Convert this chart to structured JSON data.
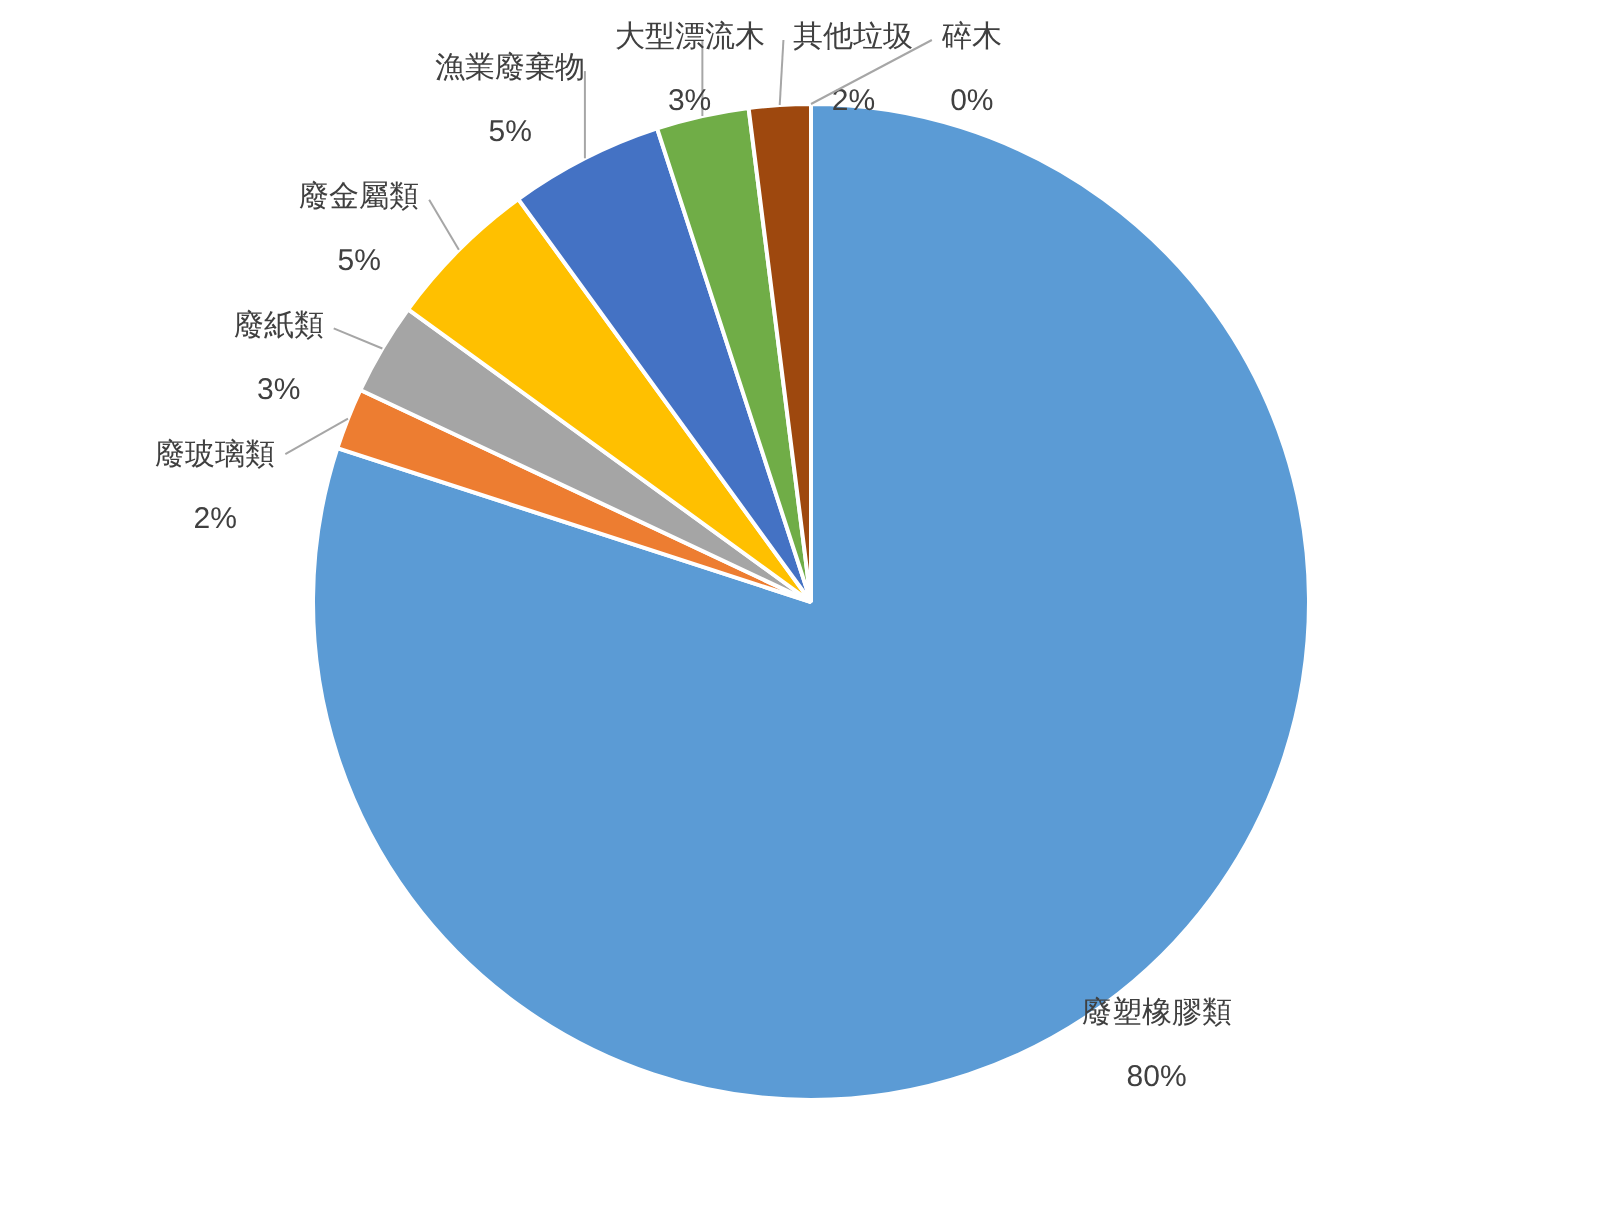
{
  "chart_data": {
    "type": "pie",
    "categories": [
      "廢塑橡膠類",
      "廢玻璃類",
      "廢紙類",
      "廢金屬類",
      "漁業廢棄物",
      "大型漂流木",
      "其他垃圾",
      "碎木"
    ],
    "values": [
      80,
      2,
      3,
      5,
      5,
      3,
      2,
      0
    ],
    "colors": [
      "#5b9bd5",
      "#ed7d31",
      "#a5a5a5",
      "#ffc000",
      "#4472c4",
      "#70ad47",
      "#9e480e",
      "#255e91"
    ],
    "value_labels": [
      "80%",
      "2%",
      "3%",
      "5%",
      "5%",
      "3%",
      "2%",
      "0%"
    ],
    "legend": false
  }
}
